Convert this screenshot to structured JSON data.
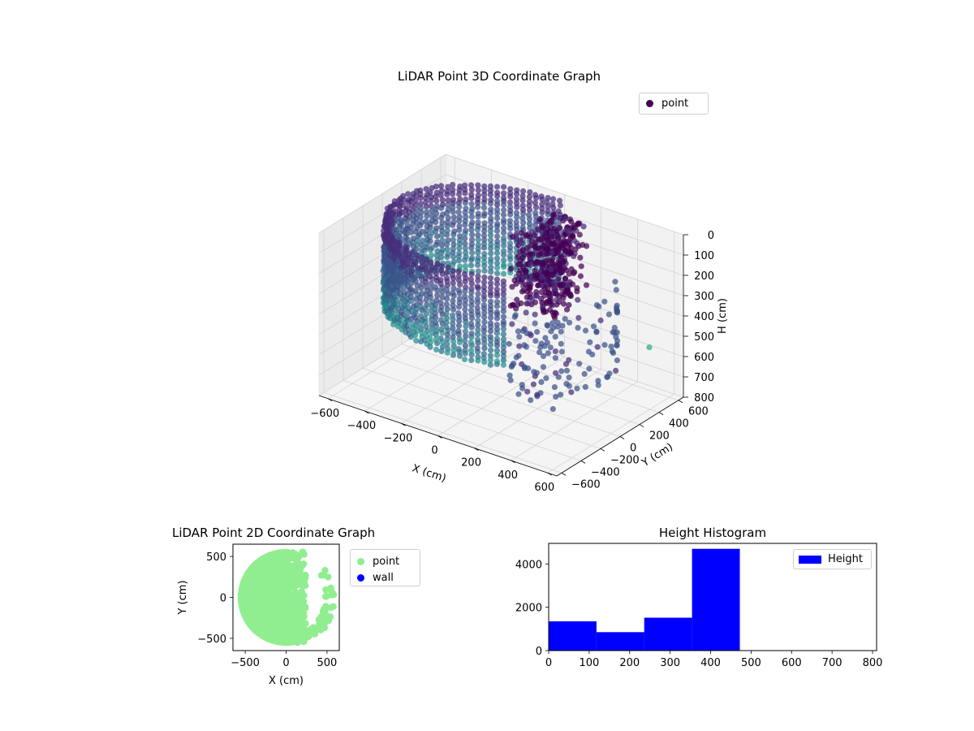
{
  "chart_data": [
    {
      "type": "scatter",
      "projection": "3d",
      "title": "LiDAR Point 3D Coordinate Graph",
      "xlabel": "X (cm)",
      "ylabel": "Y (cm)",
      "zlabel": "H (cm)",
      "xticks": [
        "−600",
        "−400",
        "−200",
        "0",
        "200",
        "400",
        "600"
      ],
      "yticks": [
        "−600",
        "−400",
        "−200",
        "0",
        "200",
        "400",
        "600"
      ],
      "zticks": [
        "0",
        "100",
        "200",
        "300",
        "400",
        "500",
        "600",
        "700",
        "800"
      ],
      "xlim": [
        -650,
        650
      ],
      "ylim": [
        -650,
        650
      ],
      "zlim": [
        0,
        800
      ],
      "z_inverted": true,
      "colormap": "viridis",
      "grid": true,
      "legend": {
        "position": "top-right",
        "entries": [
          "point"
        ]
      },
      "series": [
        {
          "name": "point",
          "color": "#440154",
          "shape": "partial cylindrical wall of points, radius about 560 cm, spanning angles 90°–300°, H about 0–420 cm, plus a dense cluster near x 0–200 and scattered outliers"
        }
      ]
    },
    {
      "type": "scatter",
      "title": "LiDAR Point 2D Coordinate Graph",
      "xlabel": "X (cm)",
      "ylabel": "Y (cm)",
      "xticks": [
        "−500",
        "0",
        "500"
      ],
      "yticks": [
        "−500",
        "0",
        "500"
      ],
      "xlim": [
        -650,
        650
      ],
      "ylim": [
        -650,
        650
      ],
      "legend": {
        "position": "outside-right",
        "entries": [
          "point",
          "wall"
        ]
      },
      "series": [
        {
          "name": "point",
          "color": "#90ee90"
        },
        {
          "name": "wall",
          "color": "#0000ff"
        }
      ]
    },
    {
      "type": "bar",
      "title": "Height Histogram",
      "xlabel": "",
      "ylabel": "",
      "bin_edges": [
        0,
        118,
        236,
        354,
        472
      ],
      "values": [
        1350,
        850,
        1520,
        4700
      ],
      "xlim": [
        0,
        810
      ],
      "ylim": [
        0,
        4950
      ],
      "xticks": [
        "0",
        "100",
        "200",
        "300",
        "400",
        "500",
        "600",
        "700",
        "800"
      ],
      "yticks": [
        "0",
        "2000",
        "4000"
      ],
      "legend": {
        "position": "top-right",
        "entries": [
          "Height"
        ]
      },
      "series": [
        {
          "name": "Height",
          "color": "#0000ff"
        }
      ]
    }
  ]
}
